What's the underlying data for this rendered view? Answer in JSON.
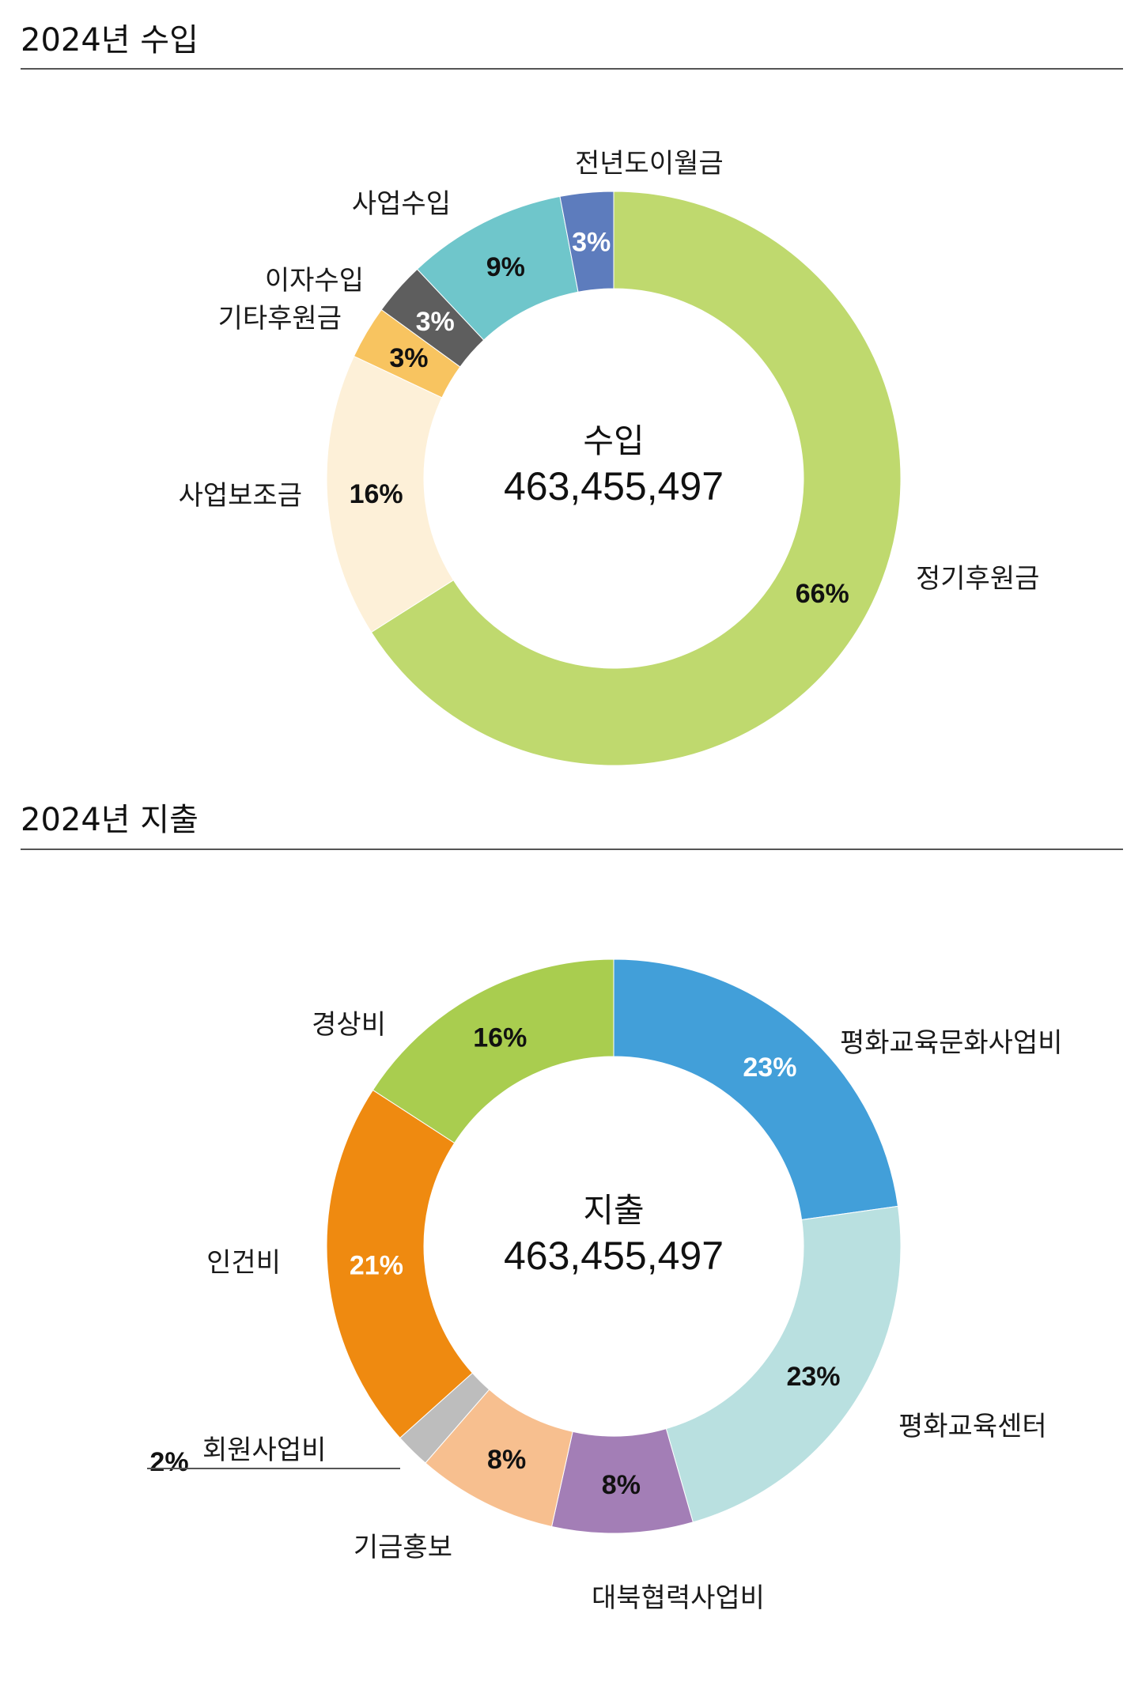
{
  "income": {
    "heading": "2024년 수입",
    "chart_data": {
      "type": "pie",
      "center_title": "수입",
      "center_value": "463,455,497",
      "slices": [
        {
          "name": "정기후원금",
          "value": 66,
          "label": "66%",
          "color": "#bfd96e",
          "text_color": "#111111"
        },
        {
          "name": "사업보조금",
          "value": 16,
          "label": "16%",
          "color": "#fdf0d8",
          "text_color": "#111111"
        },
        {
          "name": "기타후원금",
          "value": 3,
          "label": "3%",
          "color": "#f8c460",
          "text_color": "#111111"
        },
        {
          "name": "이자수입",
          "value": 3,
          "label": "3%",
          "color": "#5e5e5e",
          "text_color": "#ffffff"
        },
        {
          "name": "사업수입",
          "value": 9,
          "label": "9%",
          "color": "#6fc6cb",
          "text_color": "#111111"
        },
        {
          "name": "전년도이월금",
          "value": 3,
          "label": "3%",
          "color": "#5d7cbd",
          "text_color": "#ffffff"
        }
      ]
    }
  },
  "expense": {
    "heading": "2024년 지출",
    "chart_data": {
      "type": "pie",
      "center_title": "지출",
      "center_value": "463,455,497",
      "slices": [
        {
          "name": "평화교육문화사업비",
          "value": 23,
          "label": "23%",
          "color": "#429fd9",
          "text_color": "#ffffff"
        },
        {
          "name": "평화교육센터",
          "value": 23,
          "label": "23%",
          "color": "#b9e0e0",
          "text_color": "#111111"
        },
        {
          "name": "대북협력사업비",
          "value": 8,
          "label": "8%",
          "color": "#a37eb6",
          "text_color": "#111111"
        },
        {
          "name": "기금홍보",
          "value": 8,
          "label": "8%",
          "color": "#f7bf8f",
          "text_color": "#111111"
        },
        {
          "name": "회원사업비",
          "value": 2,
          "label": "2%",
          "color": "#bdbdbd",
          "text_color": "#111111"
        },
        {
          "name": "인건비",
          "value": 21,
          "label": "21%",
          "color": "#ef8a10",
          "text_color": "#ffffff"
        },
        {
          "name": "경상비",
          "value": 16,
          "label": "16%",
          "color": "#a9cd4f",
          "text_color": "#111111"
        }
      ]
    }
  }
}
